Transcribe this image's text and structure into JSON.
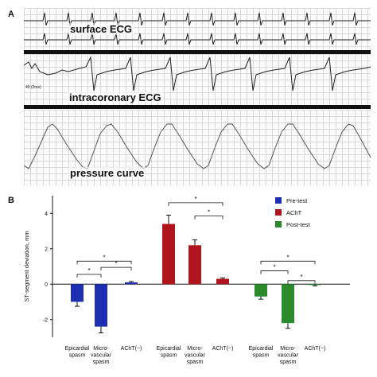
{
  "panels": {
    "a_letter": "A",
    "b_letter": "B"
  },
  "panel_a": {
    "surface_label": "surface ECG",
    "intracoronary_label": "intracoronary ECG",
    "pressure_label": "pressure curve",
    "small_label": "40 (2ms)"
  },
  "chart_data": {
    "type": "bar",
    "ylabel": "ST-segment deviation, mm",
    "ylim": [
      -3,
      5
    ],
    "yticks": [
      -2,
      0,
      2,
      4
    ],
    "grid": false,
    "legend_position": "top-right",
    "legend": [
      {
        "name": "Pre-test",
        "color": "#1c2fb0"
      },
      {
        "name": "AChT",
        "color": "#b0141c"
      },
      {
        "name": "Post-test",
        "color": "#2b8a2b"
      }
    ],
    "groups": [
      {
        "series": "Pre-test",
        "color": "#1c2fb0",
        "categories": [
          "Epicardial\nspasm",
          "Micro-\nvascular\nspasm",
          "AChT(−)"
        ],
        "values": [
          -1.0,
          -2.4,
          0.1
        ],
        "errors": [
          0.25,
          0.35,
          0.05
        ],
        "significance": [
          "*",
          "*",
          "*"
        ]
      },
      {
        "series": "AChT",
        "color": "#b0141c",
        "categories": [
          "Epicardial\nspasm",
          "Micro-\nvascular\nspasm",
          "AChT(−)"
        ],
        "values": [
          3.4,
          2.2,
          0.3
        ],
        "errors": [
          0.5,
          0.3,
          0.05
        ],
        "significance": [
          "*",
          "*"
        ]
      },
      {
        "series": "Post-test",
        "color": "#2b8a2b",
        "categories": [
          "Epicardial\nspasm",
          "Micro-\nvascular\nspasm",
          "AChT(−)"
        ],
        "values": [
          -0.7,
          -2.2,
          -0.05
        ],
        "errors": [
          0.15,
          0.3,
          0.05
        ],
        "significance": [
          "*",
          "*",
          "*"
        ]
      }
    ]
  }
}
